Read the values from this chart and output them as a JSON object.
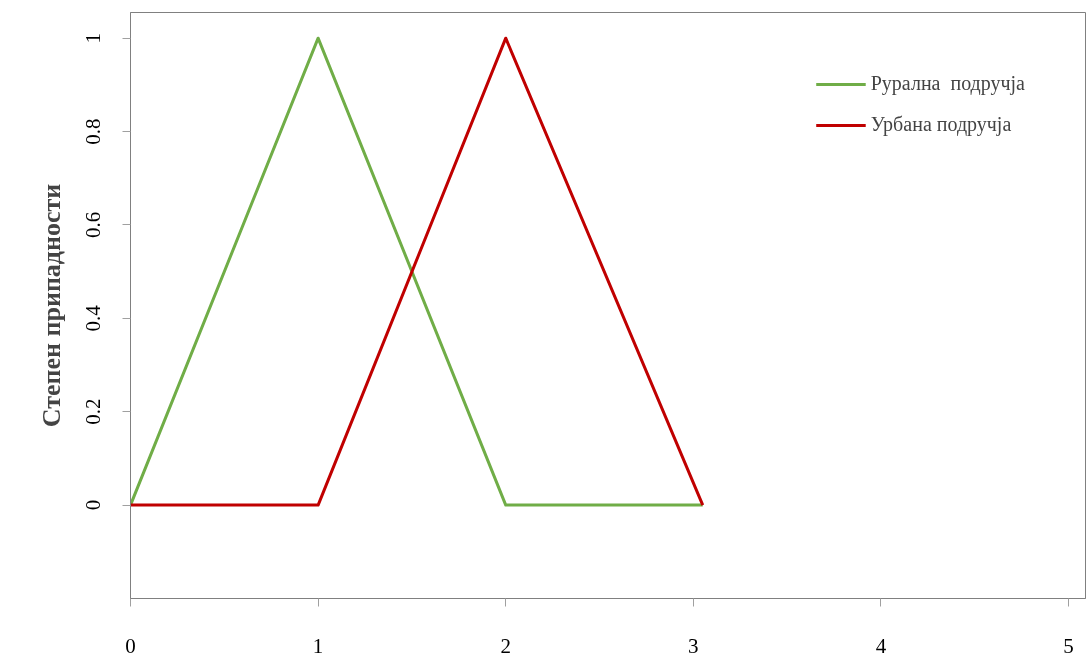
{
  "chart_data": {
    "type": "line",
    "ylabel": "Степен припадности",
    "xlim": [
      0,
      5.09
    ],
    "ylim": [
      -0.2,
      1.055
    ],
    "xticks": [
      0,
      1,
      2,
      3,
      4,
      5
    ],
    "yticks": [
      0,
      0.2,
      0.4,
      0.6,
      0.8,
      1
    ],
    "x": [
      0,
      1,
      2,
      3.05
    ],
    "series": [
      {
        "name": "Рурална  подручја",
        "color": "#70ad47",
        "values": [
          0,
          1,
          0,
          0
        ]
      },
      {
        "name": "Урбана подручја",
        "color": "#c00000",
        "x": [
          0,
          1,
          2,
          3.05
        ],
        "values": [
          0,
          0,
          1,
          0
        ]
      }
    ],
    "grid": false,
    "legend": "top right",
    "marker": "none",
    "line_style": "solid"
  }
}
